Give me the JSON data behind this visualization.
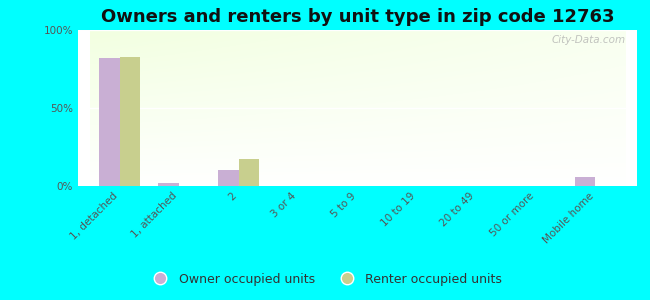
{
  "title": "Owners and renters by unit type in zip code 12763",
  "categories": [
    "1, detached",
    "1, attached",
    "2",
    "3 or 4",
    "5 to 9",
    "10 to 19",
    "20 to 49",
    "50 or more",
    "Mobile home"
  ],
  "owner_values": [
    82,
    2,
    10,
    0,
    0,
    0,
    0,
    0,
    6
  ],
  "renter_values": [
    83,
    0,
    17,
    0,
    0,
    0,
    0,
    0,
    0
  ],
  "owner_color": "#c9afd4",
  "renter_color": "#c8cf8e",
  "background_outer": "#00ffff",
  "ylabel_ticks": [
    "0%",
    "50%",
    "100%"
  ],
  "ytick_values": [
    0,
    50,
    100
  ],
  "ylim": [
    0,
    100
  ],
  "bar_width": 0.35,
  "title_fontsize": 13,
  "tick_fontsize": 7.5,
  "legend_fontsize": 9,
  "watermark": "City-Data.com"
}
